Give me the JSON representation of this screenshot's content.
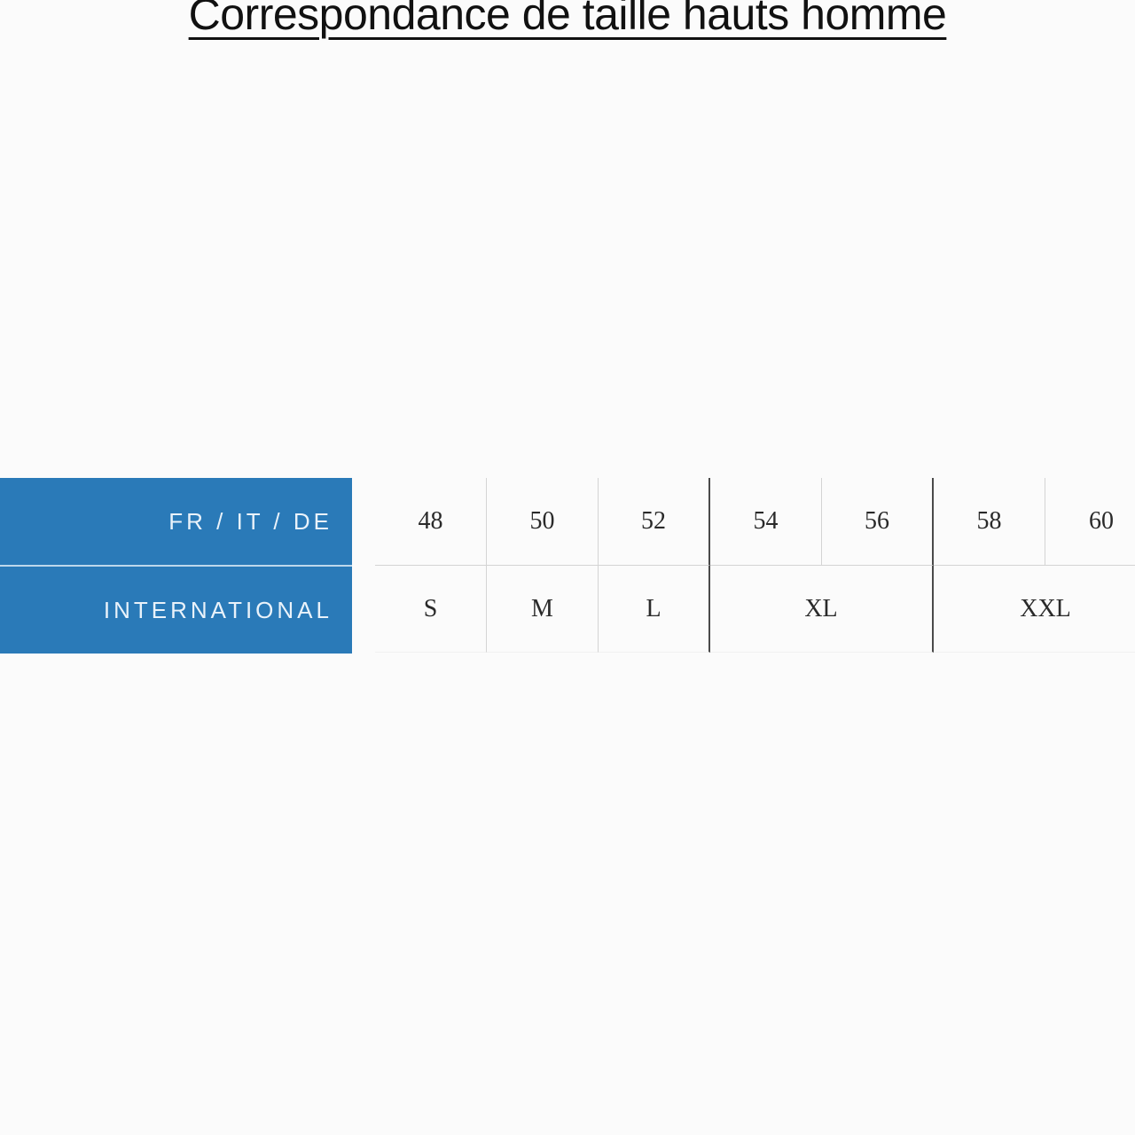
{
  "title": "Correspondance de taille hauts homme",
  "colors": {
    "header_blue": "#2a7ab8",
    "header_text": "#e9f2fa",
    "dark_grid_line": "#4a4a4a",
    "light_grid_line": "#d4d4d4",
    "cell_text": "#2a2a2a"
  },
  "table": {
    "row_headers": {
      "fr_it_de": "FR / IT / DE",
      "international": "INTERNATIONAL"
    },
    "fr_it_de_sizes": [
      "48",
      "50",
      "52",
      "54",
      "56",
      "58",
      "60"
    ],
    "international_sizes": [
      {
        "label": "S",
        "span": 1
      },
      {
        "label": "M",
        "span": 1
      },
      {
        "label": "L",
        "span": 1
      },
      {
        "label": "XL",
        "span": 2
      },
      {
        "label": "XXL",
        "span": 2
      }
    ]
  }
}
